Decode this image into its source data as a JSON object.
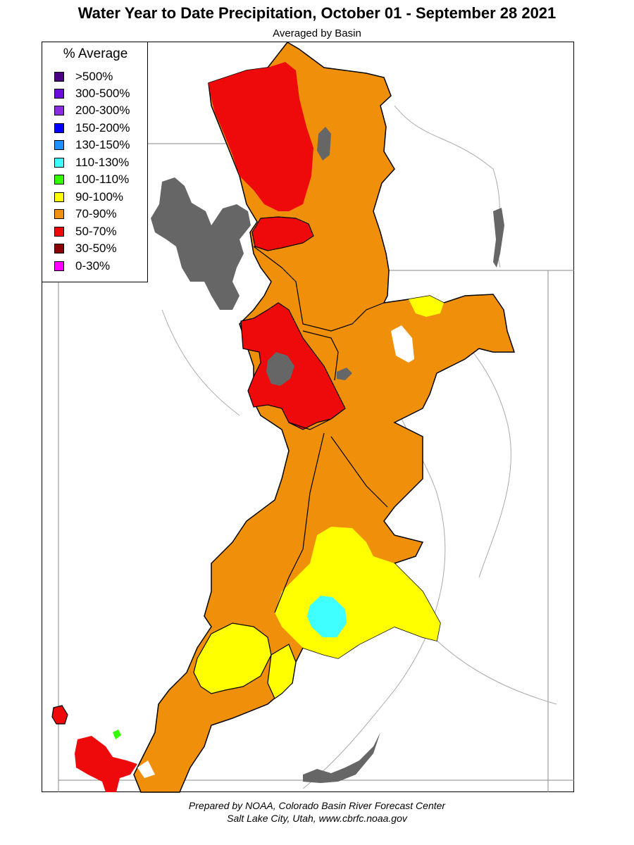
{
  "header": {
    "title": "Water Year to Date Precipitation, October 01  - September 28 2021",
    "subtitle": "Averaged by Basin"
  },
  "legend": {
    "title": "% Average",
    "items": [
      {
        "label": ">500%",
        "color": "#4B0082"
      },
      {
        "label": "300-500%",
        "color": "#6A0DDB"
      },
      {
        "label": "200-300%",
        "color": "#8A2BE2"
      },
      {
        "label": "150-200%",
        "color": "#0000FF"
      },
      {
        "label": "130-150%",
        "color": "#1E90FF"
      },
      {
        "label": "110-130%",
        "color": "#40FFFF"
      },
      {
        "label": "100-110%",
        "color": "#33FF00"
      },
      {
        "label": "90-100%",
        "color": "#FFFF00"
      },
      {
        "label": "70-90%",
        "color": "#F0900A"
      },
      {
        "label": "50-70%",
        "color": "#EE0A0A"
      },
      {
        "label": "30-50%",
        "color": "#8B0000"
      },
      {
        "label": "0-30%",
        "color": "#FF00FF"
      }
    ]
  },
  "map": {
    "colors": {
      "water": "#666666",
      "border": "#000000",
      "river": "#999999"
    }
  },
  "footer": {
    "line1": "Prepared by NOAA, Colorado Basin River Forecast Center",
    "line2": "Salt Lake City, Utah, www.cbrfc.noaa.gov"
  }
}
